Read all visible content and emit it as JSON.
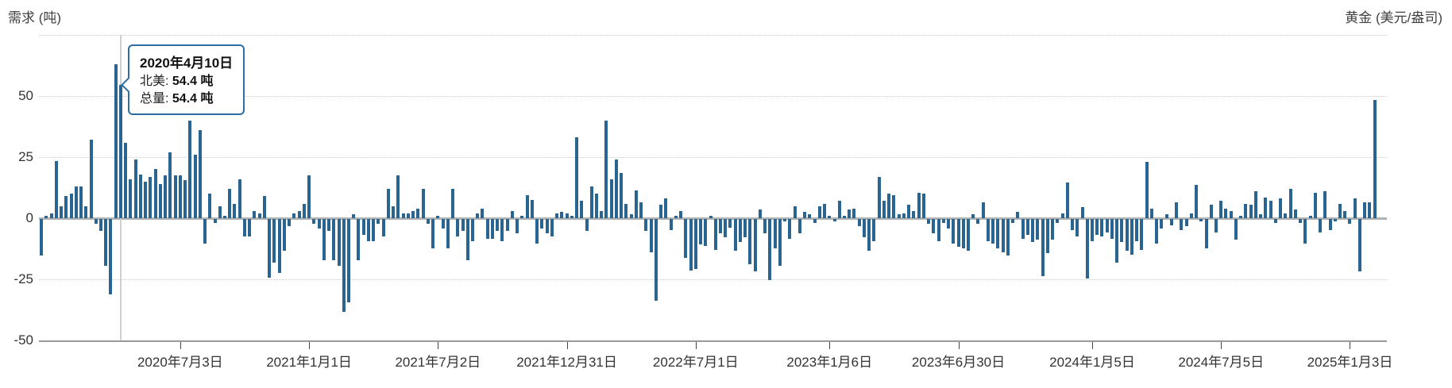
{
  "header": {
    "left_label": "需求 (吨)",
    "right_label": "黄金 (美元/盎司)"
  },
  "tooltip": {
    "title": "2020年4月10日",
    "line1_label": "北美:",
    "line1_value": "54.4 吨",
    "line2_label": "总量:",
    "line2_value": "54.4 吨"
  },
  "colors": {
    "bar": "#2a6591",
    "tooltip_border": "#2d6da3",
    "grid": "#c8c8c8",
    "zero_line": "#b1b1b1",
    "axis_line": "#9a9a9a",
    "crosshair": "#cfcfcf",
    "axis_text": "#333333",
    "header_text": "#404040"
  },
  "chart_data": {
    "type": "bar",
    "title": "需求 (吨)",
    "right_axis_title": "黄金 (美元/盎司)",
    "ylabel": "需求 (吨)",
    "ylim": [
      -50,
      75
    ],
    "grid_values": [
      75,
      50,
      25,
      -25
    ],
    "y_tick_values": [
      50,
      25,
      0,
      -25,
      -50
    ],
    "x_ticks": [
      {
        "label": "2020年7月3日",
        "index": 28
      },
      {
        "label": "2021年1月1日",
        "index": 54
      },
      {
        "label": "2021年7月2日",
        "index": 80
      },
      {
        "label": "2021年12月31日",
        "index": 106
      },
      {
        "label": "2022年7月1日",
        "index": 132
      },
      {
        "label": "2023年1月6日",
        "index": 159
      },
      {
        "label": "2023年6月30日",
        "index": 185
      },
      {
        "label": "2024年1月5日",
        "index": 212
      },
      {
        "label": "2024年7月5日",
        "index": 238
      },
      {
        "label": "2025年1月3日",
        "index": 264
      }
    ],
    "highlight": {
      "index": 16,
      "date": "2020年4月10日",
      "series": "北美",
      "value_tons": 54.4,
      "total_tons": 54.4
    },
    "values": [
      -15,
      1,
      2,
      23.5,
      5,
      9,
      10,
      13,
      13,
      5,
      32,
      -2,
      -5,
      -19,
      -31,
      63,
      54.4,
      31,
      16,
      24,
      18,
      15,
      17,
      20,
      14,
      17.5,
      27,
      17.5,
      17.5,
      15.5,
      40,
      26,
      36,
      -10,
      10,
      -1.5,
      5,
      1,
      12,
      6,
      16,
      -7,
      -7,
      3,
      2,
      9,
      -24,
      -18,
      -22,
      -13,
      -3,
      2,
      3,
      6,
      17.5,
      -2,
      -4,
      -17,
      -5,
      -17,
      -19,
      -38,
      -34,
      1.5,
      -17,
      -6.5,
      -9,
      -9,
      -2,
      -7,
      12,
      5,
      17.5,
      2,
      2,
      3,
      4,
      12,
      -2,
      -12,
      1,
      -4,
      -12,
      12,
      -7,
      -5,
      -17,
      -9,
      2,
      4,
      -8,
      -8,
      -5,
      -9,
      -5,
      3,
      -6,
      1,
      9.5,
      7.5,
      -10,
      -4,
      -6,
      -7,
      2,
      2.5,
      2,
      1,
      33,
      7,
      -5,
      13,
      10,
      3,
      40,
      16,
      24,
      18.5,
      6,
      1.5,
      11.5,
      6.5,
      -5,
      -13.5,
      -33.5,
      5.5,
      8,
      -4.5,
      1,
      3,
      -16,
      -21,
      -20.5,
      -10.5,
      -11,
      1,
      -12.5,
      -6,
      -7.5,
      -3.5,
      -13,
      -9.5,
      -7.5,
      -18.5,
      -21.5,
      3.5,
      -6,
      -25,
      -12,
      -19,
      -1,
      -8,
      5,
      -6,
      2.5,
      1.5,
      -1.5,
      5,
      6,
      1,
      -1,
      7,
      1,
      3.5,
      4,
      -3,
      -7.5,
      -13,
      -9,
      17,
      7,
      10,
      9.5,
      1.5,
      2,
      5.5,
      3,
      10.5,
      10,
      -2,
      -6,
      -9,
      -1.5,
      -4,
      -10,
      -11.5,
      -12,
      -13,
      1.5,
      -2,
      6.5,
      -9,
      -10,
      -12,
      -13.5,
      -15,
      -1.5,
      2.5,
      -8,
      -6.5,
      -9.5,
      -8.5,
      -23.5,
      -14,
      -8.5,
      -1.5,
      2,
      14.5,
      -4.5,
      -7,
      4.5,
      -24.5,
      -9,
      -6.5,
      -7,
      -5.5,
      -8,
      -18,
      -9.5,
      -13,
      -14.5,
      -9,
      -12.5,
      23,
      4,
      -10,
      -4,
      1.5,
      -2.5,
      6.5,
      -4.5,
      -3,
      2,
      13.5,
      -1,
      -12,
      5.5,
      -5.5,
      7,
      4,
      3,
      -8.5,
      1,
      6,
      5.5,
      11,
      1.5,
      8.5,
      7,
      -1.5,
      8,
      2,
      12,
      3.5,
      -1.5,
      -10,
      1,
      10.5,
      -5.5,
      11,
      -4.5,
      -1,
      6,
      3,
      -2,
      8,
      -21.5,
      6.5,
      6.5,
      48.5
    ]
  }
}
